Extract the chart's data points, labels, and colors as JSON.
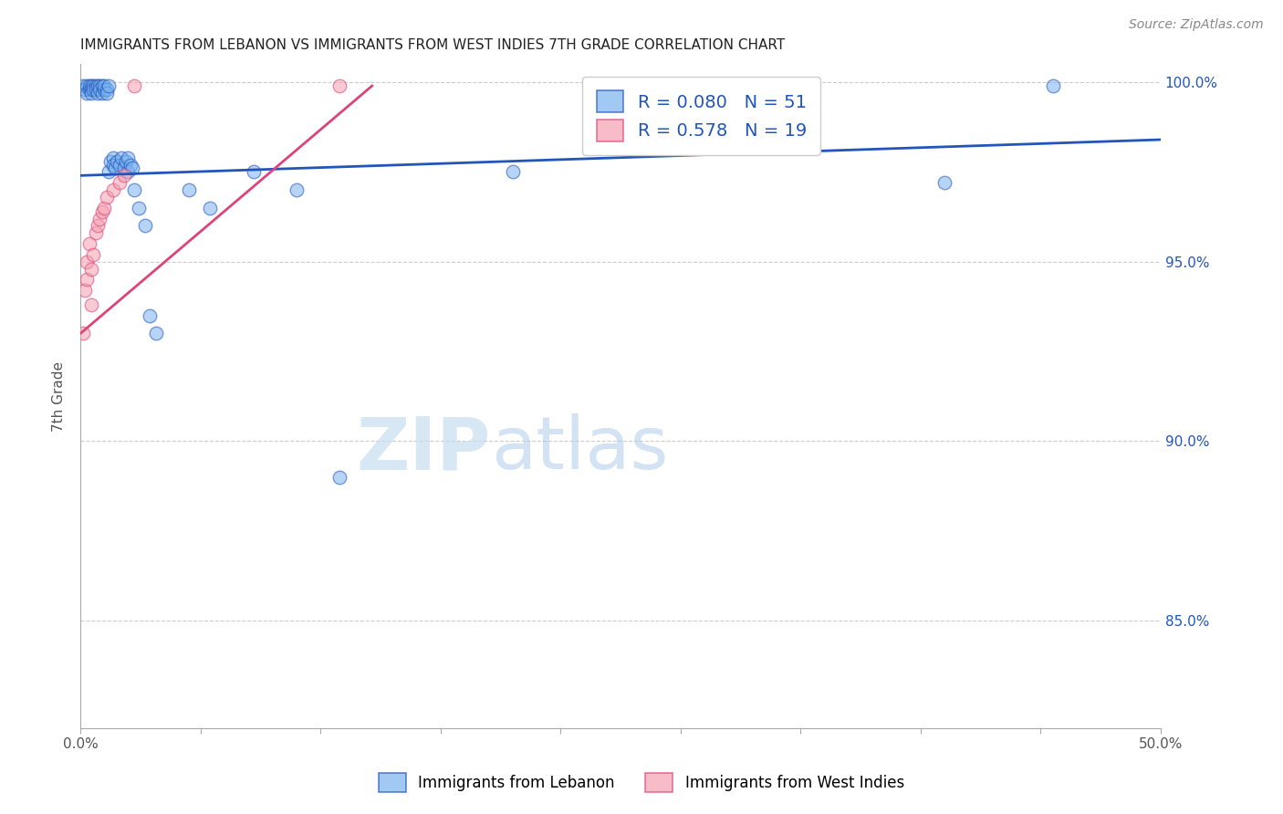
{
  "title": "IMMIGRANTS FROM LEBANON VS IMMIGRANTS FROM WEST INDIES 7TH GRADE CORRELATION CHART",
  "source": "Source: ZipAtlas.com",
  "ylabel": "7th Grade",
  "xlim": [
    0.0,
    0.5
  ],
  "ylim": [
    0.82,
    1.005
  ],
  "ytick_positions": [
    0.85,
    0.9,
    0.95,
    1.0
  ],
  "ytick_labels": [
    "85.0%",
    "90.0%",
    "95.0%",
    "100.0%"
  ],
  "grid_color": "#cccccc",
  "background": "#ffffff",
  "lebanon_color": "#7ab3ef",
  "west_indies_color": "#f4a0b0",
  "lebanon_R": 0.08,
  "lebanon_N": 51,
  "west_indies_R": 0.578,
  "west_indies_N": 19,
  "lebanon_line_color": "#2255bb",
  "west_indies_line_color": "#dd4477",
  "lebanon_scatter_x": [
    0.001,
    0.002,
    0.003,
    0.003,
    0.004,
    0.004,
    0.005,
    0.005,
    0.005,
    0.006,
    0.006,
    0.007,
    0.007,
    0.008,
    0.008,
    0.009,
    0.009,
    0.01,
    0.01,
    0.011,
    0.011,
    0.012,
    0.012,
    0.013,
    0.013,
    0.014,
    0.015,
    0.015,
    0.016,
    0.017,
    0.018,
    0.019,
    0.02,
    0.021,
    0.022,
    0.022,
    0.023,
    0.024,
    0.025,
    0.027,
    0.03,
    0.032,
    0.035,
    0.05,
    0.06,
    0.08,
    0.1,
    0.12,
    0.2,
    0.4,
    0.45
  ],
  "lebanon_scatter_y": [
    0.999,
    0.998,
    0.999,
    0.997,
    0.998,
    0.999,
    0.999,
    0.998,
    0.997,
    0.999,
    0.998,
    0.999,
    0.998,
    0.999,
    0.997,
    0.999,
    0.998,
    0.999,
    0.997,
    0.998,
    0.999,
    0.998,
    0.997,
    0.999,
    0.975,
    0.978,
    0.979,
    0.977,
    0.976,
    0.978,
    0.977,
    0.979,
    0.976,
    0.978,
    0.975,
    0.979,
    0.977,
    0.976,
    0.97,
    0.965,
    0.96,
    0.935,
    0.93,
    0.97,
    0.965,
    0.975,
    0.97,
    0.89,
    0.975,
    0.972,
    0.999
  ],
  "west_indies_scatter_x": [
    0.001,
    0.002,
    0.003,
    0.003,
    0.004,
    0.005,
    0.005,
    0.006,
    0.007,
    0.008,
    0.009,
    0.01,
    0.011,
    0.012,
    0.015,
    0.018,
    0.02,
    0.025,
    0.12
  ],
  "west_indies_scatter_y": [
    0.93,
    0.942,
    0.95,
    0.945,
    0.955,
    0.948,
    0.938,
    0.952,
    0.958,
    0.96,
    0.962,
    0.964,
    0.965,
    0.968,
    0.97,
    0.972,
    0.974,
    0.999,
    0.999
  ],
  "watermark_zip": "ZIP",
  "watermark_atlas": "atlas",
  "leb_line_x0": 0.0,
  "leb_line_x1": 0.5,
  "leb_line_y0": 0.974,
  "leb_line_y1": 0.984,
  "wi_line_x0": 0.0,
  "wi_line_x1": 0.135,
  "wi_line_y0": 0.93,
  "wi_line_y1": 0.999
}
